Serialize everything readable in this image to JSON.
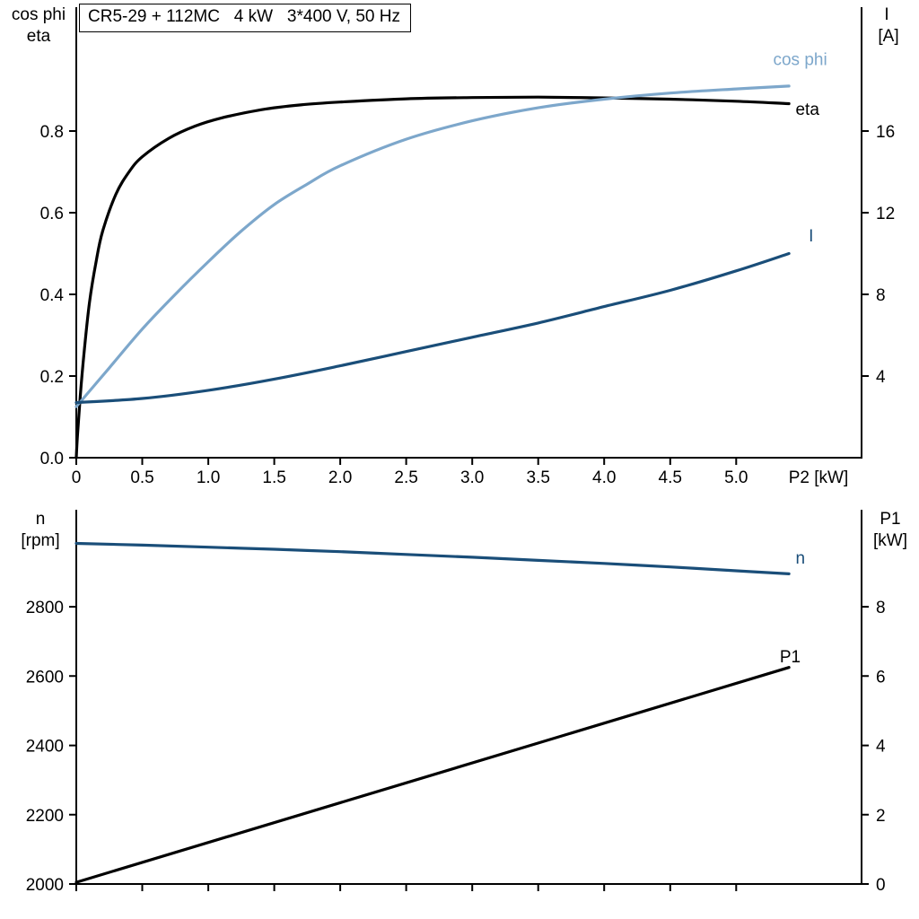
{
  "title": "CR5-29 + 112MC   4 kW   3*400 V, 50 Hz",
  "colors": {
    "black": "#000000",
    "dark_blue": "#1a4e79",
    "light_blue": "#7da7cb",
    "axis": "#000000",
    "background": "#ffffff"
  },
  "chart_data": [
    {
      "type": "line",
      "name": "motor-electrical",
      "title": "CR5-29 + 112MC   4 kW   3*400 V, 50 Hz",
      "xlabel": "P2 [kW]",
      "xlim": [
        0,
        5.95
      ],
      "x_tick_values": [
        0,
        0.5,
        1.0,
        1.5,
        2.0,
        2.5,
        3.0,
        3.5,
        4.0,
        4.5,
        5.0
      ],
      "x_tick_labels": [
        "0",
        "0.5",
        "1.0",
        "1.5",
        "2.0",
        "2.5",
        "3.0",
        "3.5",
        "4.0",
        "4.5",
        "5.0"
      ],
      "left_axis": {
        "title_lines": [
          "cos phi",
          "eta"
        ],
        "lim": [
          0,
          1.0
        ],
        "tick_values": [
          0.0,
          0.2,
          0.4,
          0.6,
          0.8
        ],
        "tick_labels": [
          "0.0",
          "0.2",
          "0.4",
          "0.6",
          "0.8"
        ]
      },
      "right_axis": {
        "title_lines": [
          "I",
          "[A]"
        ],
        "lim": [
          0,
          20
        ],
        "tick_values": [
          4,
          8,
          12,
          16
        ],
        "tick_labels": [
          "4",
          "8",
          "12",
          "16"
        ]
      },
      "series": [
        {
          "name": "eta",
          "label": "eta",
          "axis": "left",
          "color_key": "black",
          "label_at": [
            5.45,
            0.84
          ],
          "x": [
            0,
            0.01,
            0.03,
            0.06,
            0.1,
            0.15,
            0.2,
            0.3,
            0.4,
            0.5,
            0.7,
            0.9,
            1.1,
            1.4,
            1.7,
            2.0,
            2.5,
            3.0,
            3.5,
            4.0,
            4.5,
            5.0,
            5.4
          ],
          "y": [
            0,
            0.06,
            0.15,
            0.26,
            0.38,
            0.48,
            0.555,
            0.645,
            0.7,
            0.737,
            0.782,
            0.812,
            0.832,
            0.852,
            0.864,
            0.871,
            0.879,
            0.882,
            0.883,
            0.881,
            0.878,
            0.873,
            0.867
          ]
        },
        {
          "name": "cos_phi",
          "label": "cos phi",
          "axis": "left",
          "color_key": "light_blue",
          "label_at": [
            5.28,
            0.962
          ],
          "x": [
            0,
            0.25,
            0.5,
            0.75,
            1.0,
            1.25,
            1.5,
            1.75,
            2.0,
            2.5,
            3.0,
            3.5,
            4.0,
            4.5,
            5.0,
            5.4
          ],
          "y": [
            0.125,
            0.22,
            0.315,
            0.4,
            0.48,
            0.555,
            0.62,
            0.67,
            0.715,
            0.78,
            0.825,
            0.857,
            0.878,
            0.893,
            0.903,
            0.91
          ]
        },
        {
          "name": "current",
          "label": "I",
          "axis": "right",
          "color_key": "dark_blue",
          "label_at": [
            5.55,
            10.6
          ],
          "x": [
            0,
            0.5,
            1.0,
            1.5,
            2.0,
            2.5,
            3.0,
            3.5,
            4.0,
            4.5,
            5.0,
            5.4
          ],
          "y": [
            2.7,
            2.9,
            3.3,
            3.85,
            4.5,
            5.2,
            5.9,
            6.6,
            7.4,
            8.2,
            9.15,
            10.0
          ]
        }
      ]
    },
    {
      "type": "line",
      "name": "speed-power",
      "xlabel": "",
      "xlim": [
        0,
        5.95
      ],
      "x_tick_values": [
        0,
        0.5,
        1.0,
        1.5,
        2.0,
        2.5,
        3.0,
        3.5,
        4.0,
        4.5,
        5.0
      ],
      "x_tick_labels": [],
      "left_axis": {
        "title_lines": [
          "n",
          "[rpm]"
        ],
        "lim": [
          2000,
          3080
        ],
        "tick_values": [
          2000,
          2200,
          2400,
          2600,
          2800
        ],
        "tick_labels": [
          "2000",
          "2200",
          "2400",
          "2600",
          "2800"
        ]
      },
      "right_axis": {
        "title_lines": [
          "P1",
          "[kW]"
        ],
        "lim": [
          0,
          10.8
        ],
        "tick_values": [
          0,
          2,
          4,
          6,
          8
        ],
        "tick_labels": [
          "0",
          "2",
          "4",
          "6",
          "8"
        ]
      },
      "series": [
        {
          "name": "speed",
          "label": "n",
          "axis": "left",
          "color_key": "dark_blue",
          "label_at": [
            5.45,
            2925
          ],
          "x": [
            0,
            0.5,
            1.0,
            1.5,
            2.0,
            2.5,
            3.0,
            3.5,
            4.0,
            4.5,
            5.0,
            5.4
          ],
          "y": [
            2983,
            2978,
            2972,
            2966,
            2959,
            2951,
            2943,
            2934,
            2925,
            2915,
            2904,
            2895
          ]
        },
        {
          "name": "P1",
          "label": "P1",
          "axis": "right",
          "color_key": "black",
          "label_at": [
            5.33,
            6.4
          ],
          "x": [
            0,
            5.4
          ],
          "y": [
            0.05,
            6.25
          ]
        }
      ]
    }
  ]
}
